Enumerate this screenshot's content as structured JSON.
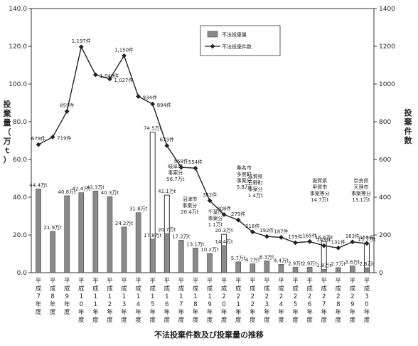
{
  "chart_data": {
    "type": "bar+line",
    "title": "不法投棄件数及び投棄量の推移",
    "ylabel_left": "投棄量（万ｔ）",
    "ylabel_right": "投棄件数",
    "ylim_left": [
      0,
      140
    ],
    "ylim_right": [
      0,
      1400
    ],
    "yticks_left": [
      "0.0",
      "20.0",
      "40.0",
      "60.0",
      "80.0",
      "100.0",
      "120.0",
      "140.0"
    ],
    "yticks_right": [
      "0",
      "200",
      "400",
      "600",
      "800",
      "1000",
      "1200",
      "1400"
    ],
    "categories": [
      "平成7年度",
      "平成8年度",
      "平成9年度",
      "平成10年度",
      "平成11年度",
      "平成12年度",
      "平成13年度",
      "平成14年度",
      "平成15年度",
      "平成16年度",
      "平成17年度",
      "平成18年度",
      "平成19年度",
      "平成20年度",
      "平成21年度",
      "平成22年度",
      "平成23年度",
      "平成24年度",
      "平成25年度",
      "平成26年度",
      "平成27年度",
      "平成28年度",
      "平成29年度",
      "平成30年度"
    ],
    "x_labels": [
      [
        "平",
        "成",
        "7",
        "年",
        "度"
      ],
      [
        "平",
        "成",
        "8",
        "年",
        "度"
      ],
      [
        "平",
        "成",
        "9",
        "年",
        "度"
      ],
      [
        "平",
        "成",
        "1",
        "0",
        "年",
        "度"
      ],
      [
        "平",
        "成",
        "1",
        "1",
        "年",
        "度"
      ],
      [
        "平",
        "成",
        "1",
        "2",
        "年",
        "度"
      ],
      [
        "平",
        "成",
        "1",
        "3",
        "年",
        "度"
      ],
      [
        "平",
        "成",
        "1",
        "4",
        "年",
        "度"
      ],
      [
        "平",
        "成",
        "1",
        "5",
        "年",
        "度"
      ],
      [
        "平",
        "成",
        "1",
        "6",
        "年",
        "度"
      ],
      [
        "平",
        "成",
        "1",
        "7",
        "年",
        "度"
      ],
      [
        "平",
        "成",
        "1",
        "8",
        "年",
        "度"
      ],
      [
        "平",
        "成",
        "1",
        "9",
        "年",
        "度"
      ],
      [
        "平",
        "成",
        "2",
        "0",
        "年",
        "度"
      ],
      [
        "平",
        "成",
        "2",
        "1",
        "年",
        "度"
      ],
      [
        "平",
        "成",
        "2",
        "2",
        "年",
        "度"
      ],
      [
        "平",
        "成",
        "2",
        "3",
        "年",
        "度"
      ],
      [
        "平",
        "成",
        "2",
        "4",
        "年",
        "度"
      ],
      [
        "平",
        "成",
        "2",
        "5",
        "年",
        "度"
      ],
      [
        "平",
        "成",
        "2",
        "6",
        "年",
        "度"
      ],
      [
        "平",
        "成",
        "2",
        "7",
        "年",
        "度"
      ],
      [
        "平",
        "成",
        "2",
        "8",
        "年",
        "度"
      ],
      [
        "平",
        "成",
        "2",
        "9",
        "年",
        "度"
      ],
      [
        "平",
        "成",
        "3",
        "0",
        "年",
        "度"
      ]
    ],
    "series": [
      {
        "name": "不法投棄量",
        "axis": "left",
        "values": [
          44.4,
          21.9,
          40.8,
          42.4,
          43.3,
          40.3,
          24.2,
          31.8,
          17.8,
          20.7,
          17.2,
          13.1,
          10.2,
          14.4,
          5.7,
          4.7,
          6.3,
          4.4,
          2.9,
          2.9,
          1.8,
          2.7,
          3.6,
          2.6
        ],
        "labels": [
          "44.4万t",
          "21.9万t",
          "40.8万t",
          "42.4万t",
          "43.3万t",
          "40.3万t",
          "24.2万t",
          "31.8万t",
          "17.8万t",
          "20.7万t",
          "17.2万t",
          "13.1万t",
          "10.2万t",
          "14.4万t",
          "5.7万t",
          "4.7万t",
          "6.3万t",
          "4.4万t",
          "2.9万t",
          "2.9万t",
          "1.8万t",
          "2.7万t",
          "3.6万t",
          "2.6万t"
        ],
        "color": "#8a8a8a"
      },
      {
        "name": "不法投棄件数",
        "axis": "right",
        "values": [
          679,
          719,
          855,
          1197,
          1049,
          1027,
          1150,
          934,
          894,
          673,
          558,
          554,
          382,
          308,
          279,
          216,
          192,
          187,
          159,
          165,
          143,
          131,
          163,
          155
        ],
        "labels": [
          "679件",
          "719件",
          "855件",
          "1,197件",
          "1,049件",
          "1,027件",
          "1,150件",
          "934件",
          "894件",
          "673件",
          "558件",
          "554件",
          "382件",
          "308件",
          "279件",
          "216件",
          "192件",
          "187件",
          "159件",
          "165件",
          "143件",
          "131件",
          "163件",
          "155件"
        ],
        "color": "#222222"
      }
    ],
    "stacked_totals": [
      {
        "index": 8,
        "total": 74.5,
        "label": "74.5万t"
      },
      {
        "index": 9,
        "total": 41.1,
        "label": "41.1万t"
      },
      {
        "index": 13,
        "total": 20.3,
        "label": "20.3万t"
      },
      {
        "index": 20,
        "total": 16.6,
        "label": "16.6万t"
      },
      {
        "index": 23,
        "total": 15.7,
        "label": "15.7万t"
      }
    ],
    "annotations": [
      {
        "index": 9,
        "lines": [
          "岐阜市",
          "事案分",
          "56.7万t"
        ]
      },
      {
        "index": 10,
        "lines": [
          "沼津市",
          "事案分",
          "20.4万t"
        ]
      },
      {
        "index": 12,
        "lines": [
          "千葉市",
          "事案分",
          "1.1万t"
        ]
      },
      {
        "index": 14,
        "lines": [
          "桑名市",
          "多度町",
          "事案分",
          "5.8万t"
        ]
      },
      {
        "index": 15,
        "lines": [
          "滋賀県",
          "日野町",
          "事案分",
          "1.4万t"
        ]
      },
      {
        "index": 20,
        "lines": [
          "滋賀県",
          "甲賀市",
          "事案等分",
          "14.7万t"
        ]
      },
      {
        "index": 23,
        "lines": [
          "奈良県",
          "天理市",
          "事案等分",
          "13.1万t"
        ]
      }
    ],
    "legend": {
      "position": "top-center",
      "items": [
        "不法投棄量",
        "不法投棄件数"
      ]
    },
    "grid": false
  }
}
